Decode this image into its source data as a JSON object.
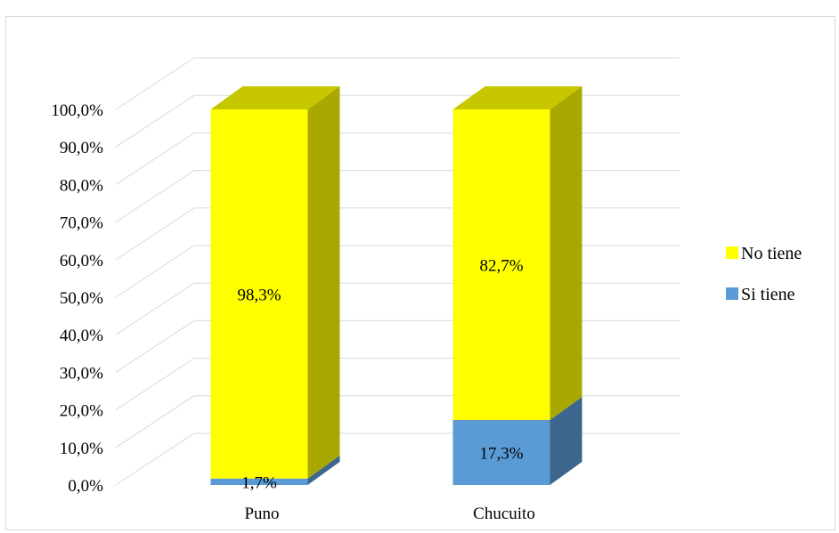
{
  "chart_data": {
    "type": "bar",
    "stacked": true,
    "three_d": true,
    "categories": [
      "Puno",
      "Chucuito"
    ],
    "series": [
      {
        "name": "Si tiene",
        "values": [
          1.7,
          17.3
        ],
        "labels": [
          "1,7%",
          "17,3%"
        ],
        "color": "#5b9bd5"
      },
      {
        "name": "No tiene",
        "values": [
          98.3,
          82.7
        ],
        "labels": [
          "98,3%",
          "82,7%"
        ],
        "color": "#ffff00"
      }
    ],
    "y_ticks": [
      "0,0%",
      "10,0%",
      "20,0%",
      "30,0%",
      "40,0%",
      "50,0%",
      "60,0%",
      "70,0%",
      "80,0%",
      "90,0%",
      "100,0%"
    ],
    "ylim": [
      0,
      100
    ],
    "grid": true,
    "legend_position": "right",
    "legend_order": [
      "No tiene",
      "Si tiene"
    ]
  }
}
